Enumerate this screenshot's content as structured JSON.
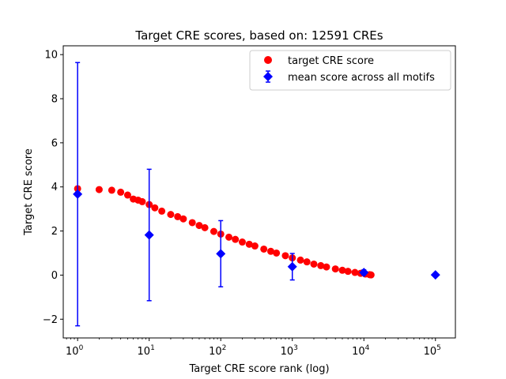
{
  "chart_data": {
    "type": "scatter",
    "title": "Target CRE scores, based on: 12591 CREs",
    "xlabel": "Target CRE score rank (log)",
    "ylabel": "Target CRE score",
    "xscale": "log",
    "xlim": [
      0.63,
      190000
    ],
    "ylim": [
      -2.85,
      10.4
    ],
    "grid": false,
    "legend_position": "top-right",
    "x_ticks": [
      {
        "value": 1,
        "base": "10",
        "exp": "0"
      },
      {
        "value": 10,
        "base": "10",
        "exp": "1"
      },
      {
        "value": 100,
        "base": "10",
        "exp": "2"
      },
      {
        "value": 1000,
        "base": "10",
        "exp": "3"
      },
      {
        "value": 10000,
        "base": "10",
        "exp": "4"
      },
      {
        "value": 100000,
        "base": "10",
        "exp": "5"
      }
    ],
    "y_ticks": [
      {
        "value": -2,
        "label": "−2"
      },
      {
        "value": 0,
        "label": "0"
      },
      {
        "value": 2,
        "label": "2"
      },
      {
        "value": 4,
        "label": "4"
      },
      {
        "value": 6,
        "label": "6"
      },
      {
        "value": 8,
        "label": "8"
      },
      {
        "value": 10,
        "label": "10"
      }
    ],
    "series": [
      {
        "name": "target CRE score",
        "kind": "scatter",
        "color": "#ff0000",
        "marker": "circle",
        "points": [
          [
            1,
            3.92
          ],
          [
            2,
            3.88
          ],
          [
            3,
            3.85
          ],
          [
            4,
            3.76
          ],
          [
            5,
            3.63
          ],
          [
            6,
            3.45
          ],
          [
            7,
            3.4
          ],
          [
            8,
            3.33
          ],
          [
            10,
            3.2
          ],
          [
            12,
            3.05
          ],
          [
            15,
            2.9
          ],
          [
            20,
            2.75
          ],
          [
            25,
            2.65
          ],
          [
            30,
            2.55
          ],
          [
            40,
            2.38
          ],
          [
            50,
            2.25
          ],
          [
            60,
            2.15
          ],
          [
            80,
            1.98
          ],
          [
            100,
            1.86
          ],
          [
            130,
            1.72
          ],
          [
            160,
            1.62
          ],
          [
            200,
            1.5
          ],
          [
            250,
            1.4
          ],
          [
            300,
            1.32
          ],
          [
            400,
            1.18
          ],
          [
            500,
            1.08
          ],
          [
            600,
            1.0
          ],
          [
            800,
            0.88
          ],
          [
            1000,
            0.78
          ],
          [
            1300,
            0.68
          ],
          [
            1600,
            0.6
          ],
          [
            2000,
            0.5
          ],
          [
            2500,
            0.43
          ],
          [
            3000,
            0.37
          ],
          [
            4000,
            0.28
          ],
          [
            5000,
            0.22
          ],
          [
            6000,
            0.17
          ],
          [
            7500,
            0.12
          ],
          [
            9000,
            0.08
          ],
          [
            10500,
            0.05
          ],
          [
            12000,
            0.02
          ],
          [
            12591,
            0.01
          ]
        ]
      },
      {
        "name": "mean score across all motifs",
        "kind": "errorbar",
        "color": "#0000ff",
        "marker": "diamond",
        "points": [
          {
            "x": 1,
            "y": 3.67,
            "err": 5.97
          },
          {
            "x": 10,
            "y": 1.82,
            "err": 2.98
          },
          {
            "x": 100,
            "y": 0.97,
            "err": 1.5
          },
          {
            "x": 1000,
            "y": 0.38,
            "err": 0.6
          },
          {
            "x": 10000,
            "y": 0.12,
            "err": 0.12
          },
          {
            "x": 100000,
            "y": 0.01,
            "err": 0.0
          }
        ]
      }
    ]
  }
}
